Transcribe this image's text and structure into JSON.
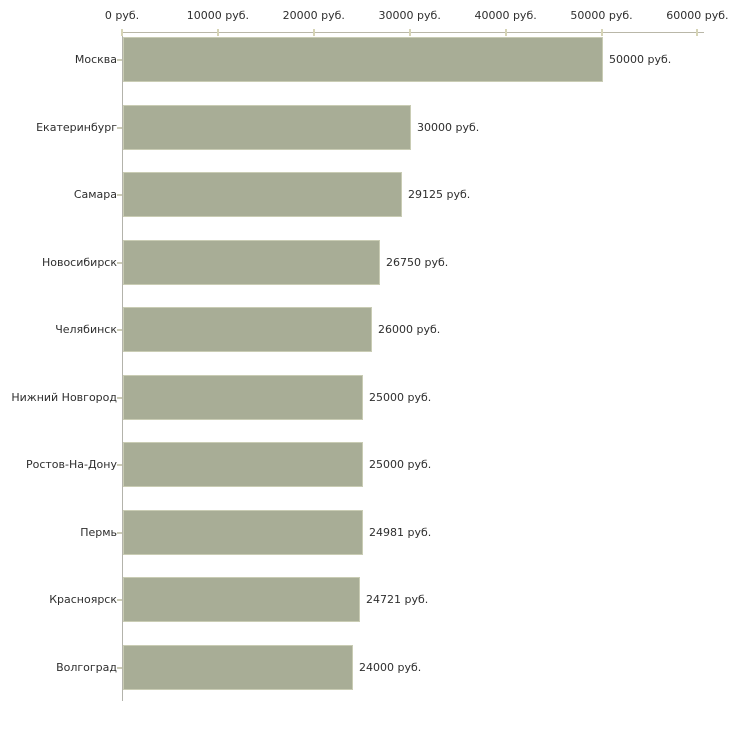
{
  "chart_data": {
    "type": "bar",
    "orientation": "horizontal",
    "title": "",
    "xlabel": "",
    "ylabel": "",
    "unit": "руб.",
    "categories": [
      "Москва",
      "Екатеринбург",
      "Самара",
      "Новосибирск",
      "Челябинск",
      "Нижний Новгород",
      "Ростов-На-Дону",
      "Пермь",
      "Красноярск",
      "Волгоград"
    ],
    "values": [
      50000,
      30000,
      29125,
      26750,
      26000,
      25000,
      25000,
      24981,
      24721,
      24000
    ],
    "value_labels": [
      "50000 руб.",
      "30000 руб.",
      "29125 руб.",
      "26750 руб.",
      "26000 руб.",
      "25000 руб.",
      "25000 руб.",
      "24981 руб.",
      "24721 руб.",
      "24000 руб."
    ],
    "x_axis": {
      "position": "top",
      "min": 0,
      "max": 60000,
      "ticks": [
        0,
        10000,
        20000,
        30000,
        40000,
        50000,
        60000
      ],
      "tick_labels": [
        "0 руб.",
        "10000 руб.",
        "20000 руб.",
        "30000 руб.",
        "40000 руб.",
        "50000 руб.",
        "60000 руб."
      ]
    },
    "legend": null,
    "grid": false,
    "colors": {
      "bar_fill": "#a8ad96",
      "bar_border": "#c9ccb4",
      "axis_line": "#b9b7a8",
      "tick_mark": "#d6d4b6",
      "text": "#2e2e2e",
      "background": "#ffffff"
    }
  }
}
